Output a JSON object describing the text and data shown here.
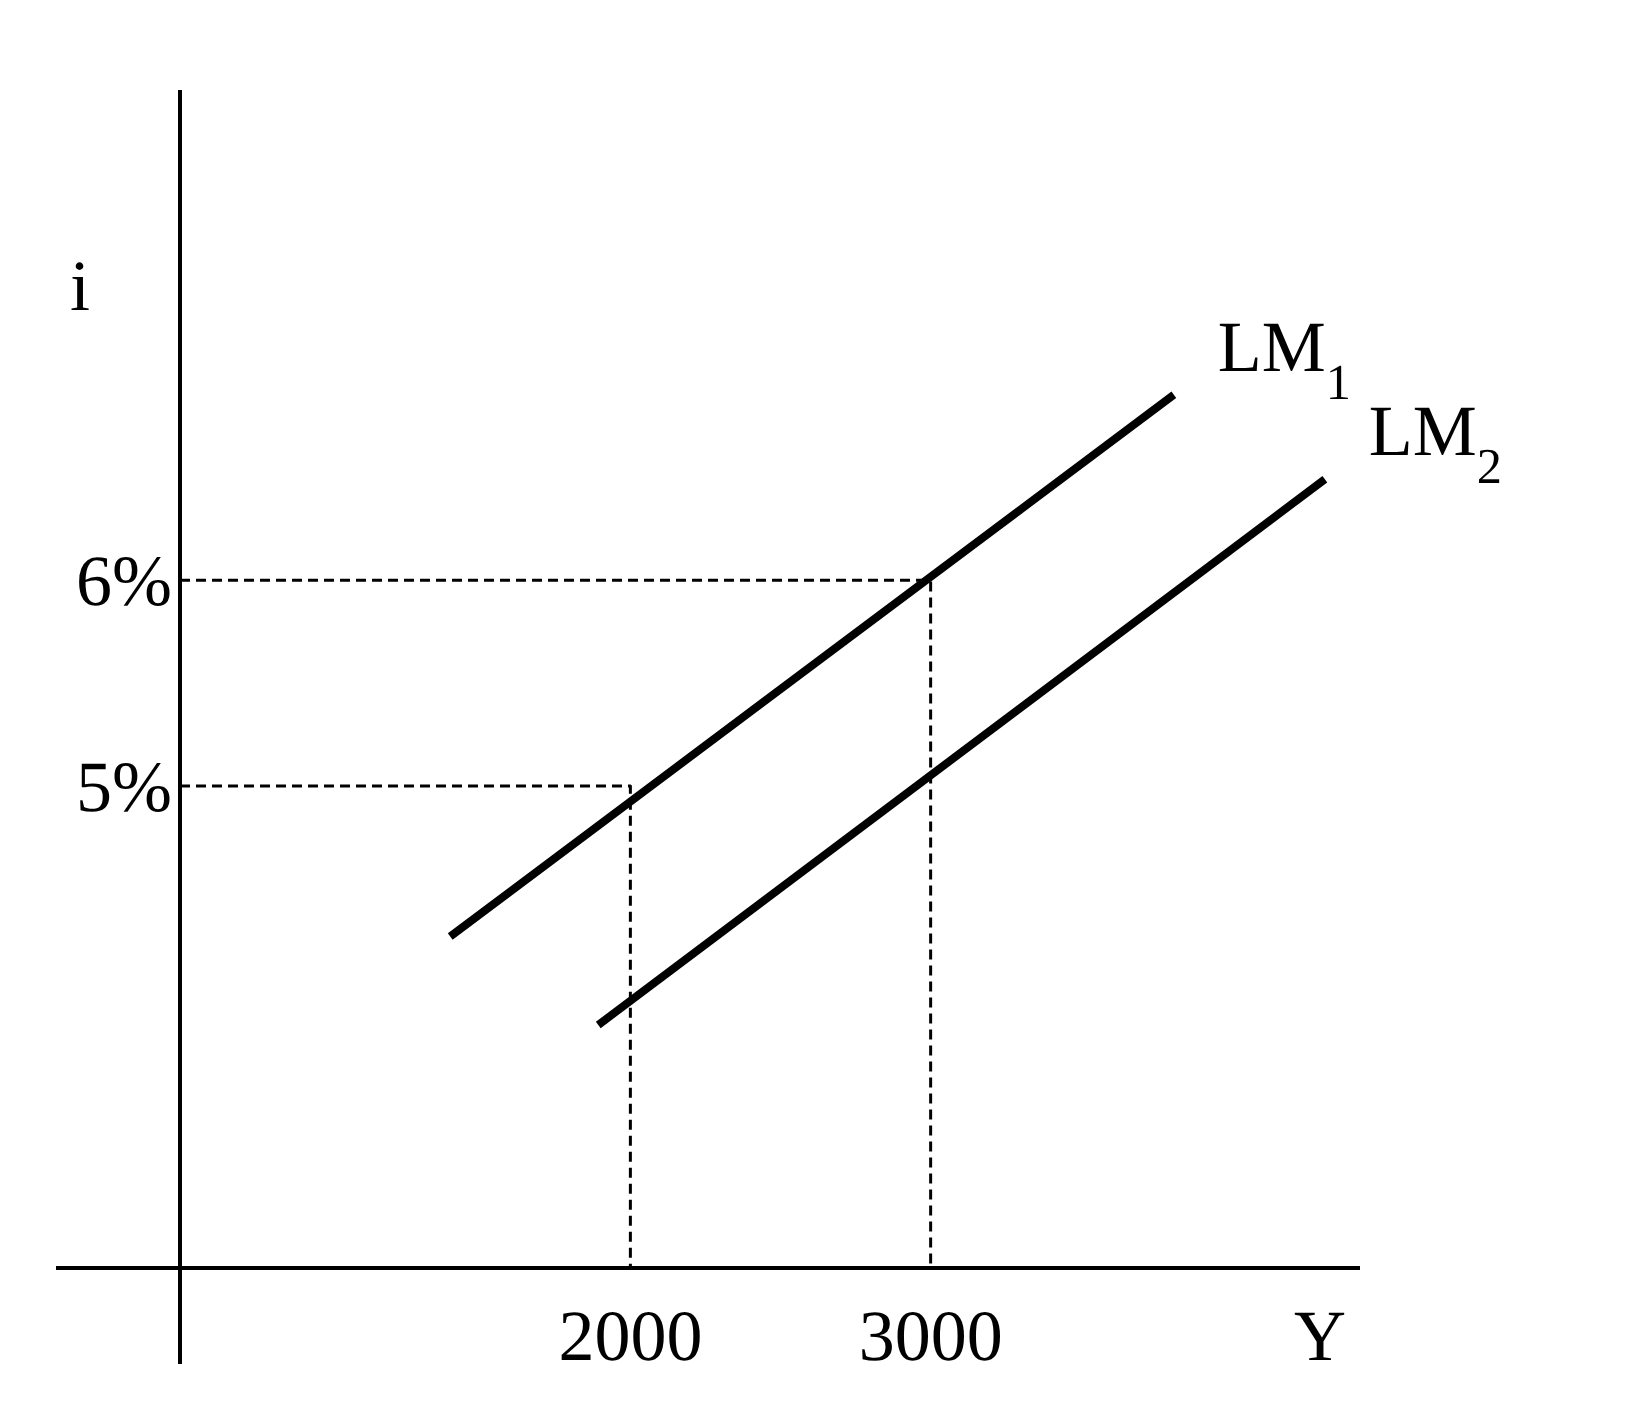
{
  "chart_data": {
    "type": "line",
    "xlabel": "Y",
    "ylabel": "i",
    "xlim": [
      500,
      4430
    ],
    "ylim": [
      2.66,
      8.38
    ],
    "xticks": [
      2000,
      3000
    ],
    "yticks": [
      {
        "value": 5,
        "label": "5%"
      },
      {
        "value": 6,
        "label": "6%"
      }
    ],
    "series": [
      {
        "name": "LM$_{1}$",
        "color": "#000000",
        "x": [
          1400,
          3810
        ],
        "values": [
          4.27,
          6.9
        ]
      },
      {
        "name": "LM$_{2}$",
        "color": "#000000",
        "x": [
          1893,
          4313
        ],
        "values": [
          3.84,
          6.49
        ]
      },
      {
        "color": "#000000",
        "line_style": "dashed",
        "x": [
          500,
          2000,
          2000
        ],
        "values": [
          5,
          5,
          2.66
        ]
      },
      {
        "color": "#000000",
        "line_style": "dashed",
        "x": [
          500,
          3000,
          3000
        ],
        "values": [
          6,
          6,
          2.66
        ]
      }
    ]
  }
}
